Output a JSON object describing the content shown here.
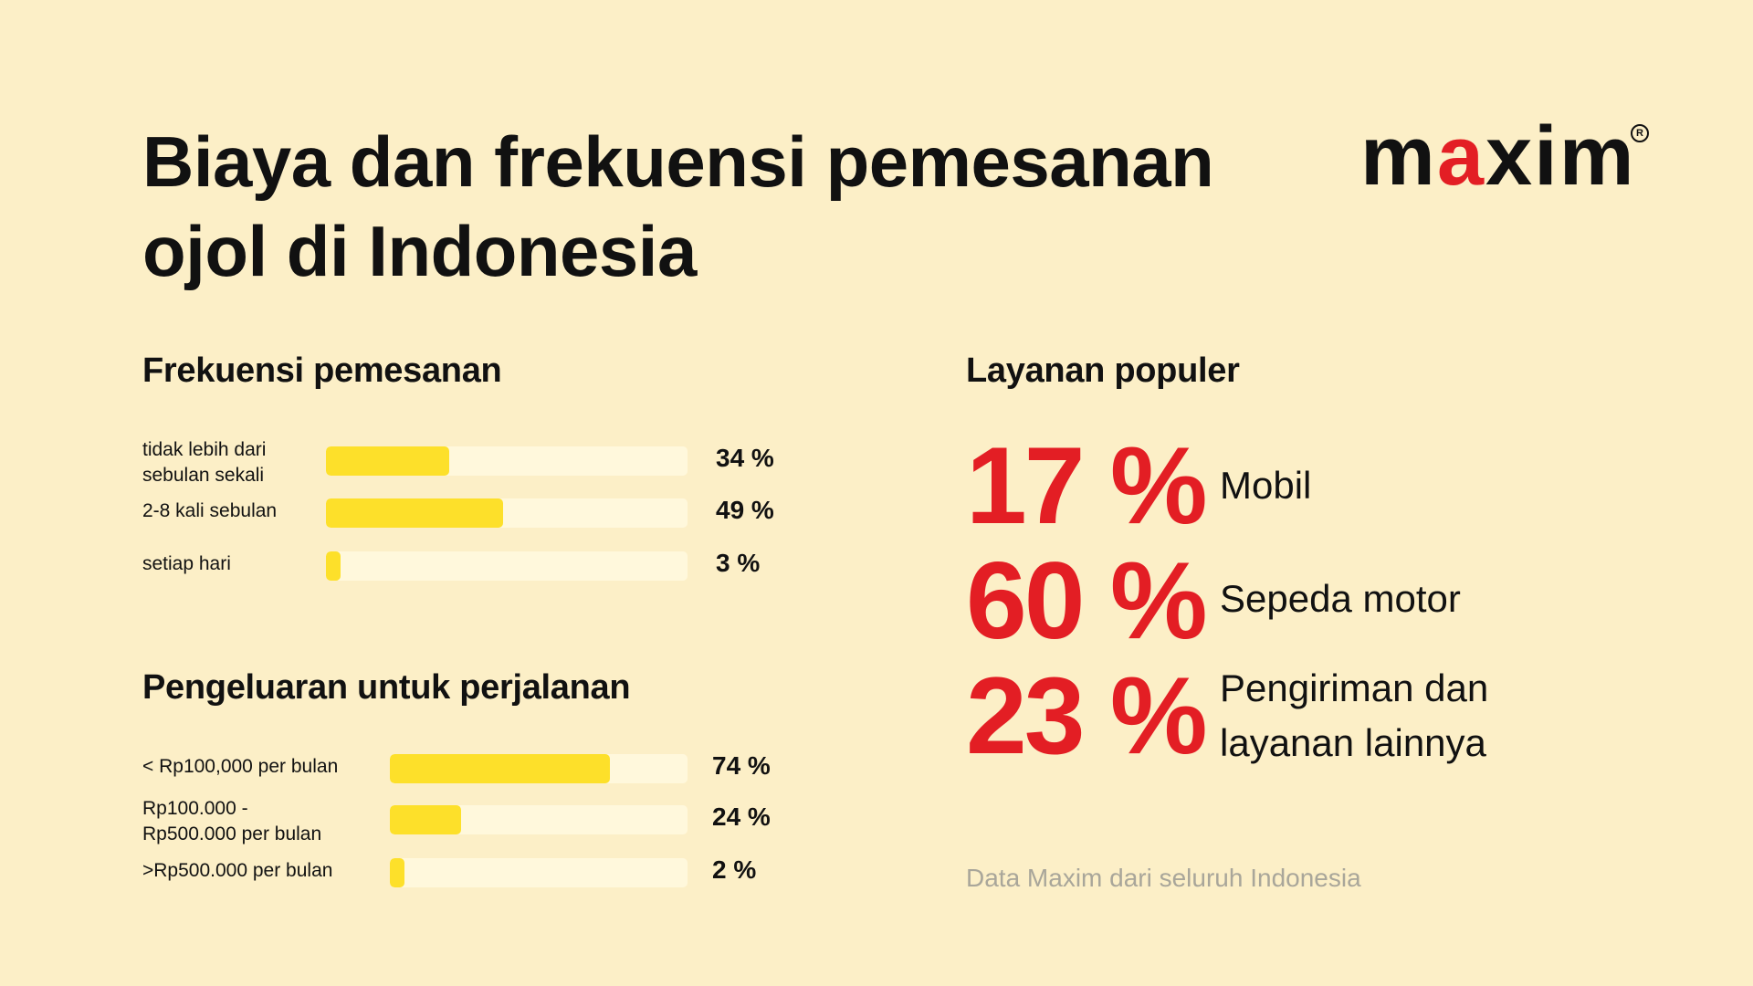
{
  "title": {
    "line1": "Biaya dan frekuensi pemesanan",
    "line2": "ojol di Indonesia"
  },
  "logo": {
    "pre": "m",
    "accent": "a",
    "post": "xim",
    "reg": "R"
  },
  "colors": {
    "background": "#FCEFC7",
    "bar_fill": "#FDE02A",
    "bar_track": "#FFF8DC",
    "accent_red": "#E31E24",
    "footnote": "#A9A69A"
  },
  "frequency": {
    "heading": "Frekuensi pemesanan"
  },
  "spending": {
    "heading": "Pengeluaran untuk perjalanan"
  },
  "services": {
    "heading": "Layanan populer",
    "items": [
      {
        "value": "17 %",
        "label_lines": [
          "Mobil"
        ]
      },
      {
        "value": "60 %",
        "label_lines": [
          "Sepeda motor"
        ]
      },
      {
        "value": "23 %",
        "label_lines": [
          "Pengiriman dan",
          "layanan lainnya"
        ]
      }
    ]
  },
  "footnote": "Data Maxim dari seluruh Indonesia",
  "chart_data": [
    {
      "type": "bar",
      "orientation": "horizontal",
      "title": "Frekuensi pemesanan",
      "unit": "%",
      "xlim": [
        0,
        100
      ],
      "categories": [
        [
          "tidak lebih dari",
          "sebulan sekali"
        ],
        [
          "2-8 kali sebulan"
        ],
        [
          "setiap hari"
        ]
      ],
      "values": [
        34,
        49,
        3
      ],
      "value_labels": [
        "34 %",
        "49 %",
        "3 %"
      ]
    },
    {
      "type": "bar",
      "orientation": "horizontal",
      "title": "Pengeluaran untuk perjalanan",
      "unit": "%",
      "xlim": [
        0,
        100
      ],
      "categories": [
        [
          "< Rp100,000 per bulan"
        ],
        [
          "Rp100.000 -",
          "Rp500.000 per bulan"
        ],
        [
          ">Rp500.000 per bulan"
        ]
      ],
      "values": [
        74,
        24,
        2
      ],
      "value_labels": [
        "74 %",
        "24 %",
        "2 %"
      ]
    }
  ]
}
